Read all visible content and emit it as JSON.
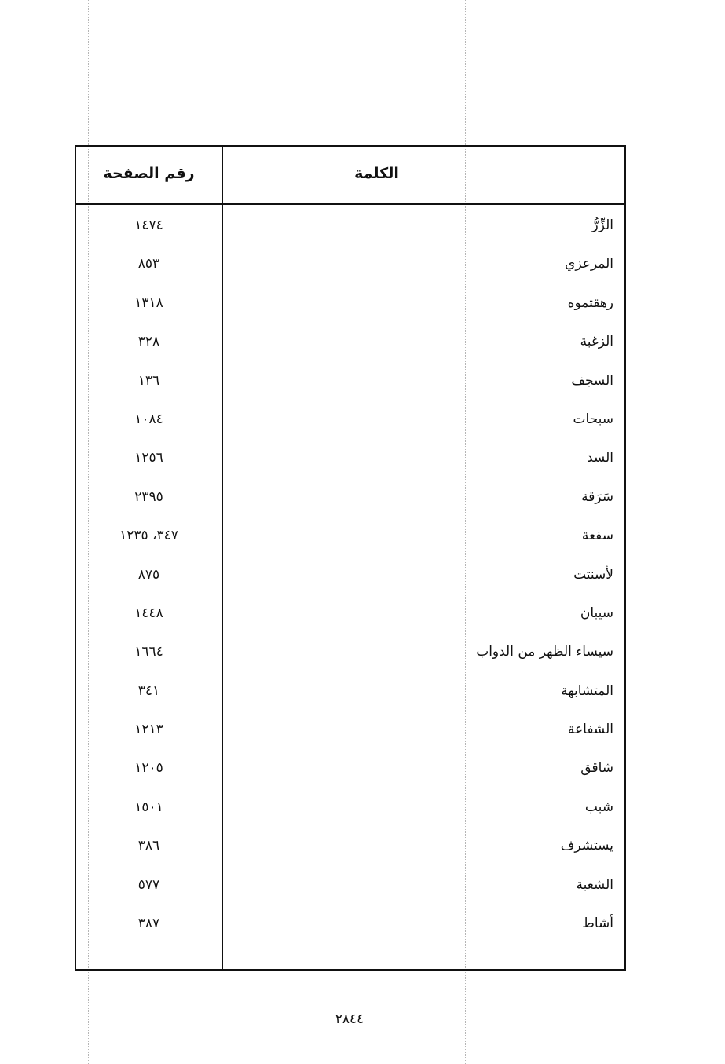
{
  "table": {
    "headers": {
      "word": "الكلمة",
      "page": "رقم الصفحة"
    },
    "rows": [
      {
        "word": "الزِّرُّ",
        "page": "١٤٧٤"
      },
      {
        "word": "المرعزي",
        "page": "٨٥٣"
      },
      {
        "word": "رهقتموه",
        "page": "١٣١٨"
      },
      {
        "word": "الزغبة",
        "page": "٣٢٨"
      },
      {
        "word": "السجف",
        "page": "١٣٦"
      },
      {
        "word": "سبحات",
        "page": "١٠٨٤"
      },
      {
        "word": "السد",
        "page": "١٢٥٦"
      },
      {
        "word": "سَرَقة",
        "page": "٢٣٩٥"
      },
      {
        "word": "سفعة",
        "page": "٣٤٧، ١٢٣٥"
      },
      {
        "word": "لأسنتت",
        "page": "٨٧٥"
      },
      {
        "word": "سيبان",
        "page": "١٤٤٨"
      },
      {
        "word": "سيساء الظهر من الدواب",
        "page": "١٦٦٤"
      },
      {
        "word": "المتشابهة",
        "page": "٣٤١"
      },
      {
        "word": "الشفاعة",
        "page": "١٢١٣"
      },
      {
        "word": "شاقق",
        "page": "١٢٠٥"
      },
      {
        "word": "شبب",
        "page": "١٥٠١"
      },
      {
        "word": "يستشرف",
        "page": "٣٨٦"
      },
      {
        "word": "الشعبة",
        "page": "٥٧٧"
      },
      {
        "word": "أشاط",
        "page": "٣٨٧"
      }
    ]
  },
  "footer": {
    "page_number": "٢٨٤٤"
  }
}
